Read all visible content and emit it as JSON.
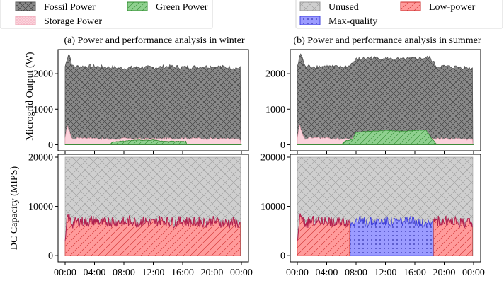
{
  "figure": {
    "legend_left": {
      "items": [
        {
          "label": "Fossil Power",
          "pattern": "fossil"
        },
        {
          "label": "Green Power",
          "pattern": "green"
        },
        {
          "label": "Storage Power",
          "pattern": "storage"
        }
      ]
    },
    "legend_right": {
      "items": [
        {
          "label": "Unused",
          "pattern": "unused"
        },
        {
          "label": "Low-power",
          "pattern": "lowpower"
        },
        {
          "label": "Max-quality",
          "pattern": "maxq"
        }
      ]
    },
    "shared_xlabel_ticks": [
      "00:00",
      "04:00",
      "08:00",
      "12:00",
      "16:00",
      "20:00",
      "00:00"
    ],
    "colors": {
      "fossil_fill": "#8a8a8a",
      "fossil_edge": "#555555",
      "green_fill": "#8fd08f",
      "green_edge": "#2e8b2e",
      "storage_fill": "#fbd3dc",
      "storage_edge": "#e8a0b0",
      "unused_fill": "#cfcfcf",
      "lowpower_fill": "#ff9b9b",
      "lowpower_edge": "#cc2b2b",
      "maxq_fill": "#9b9bff",
      "maxq_edge": "#4040dd",
      "capacity_line": "#b02050"
    }
  },
  "chart_data": [
    {
      "id": "winter-power",
      "type": "area",
      "title": "(a) Power and performance analysis in winter",
      "ylabel": "Microgrid Output (W)",
      "x_unit": "hours",
      "xlim": [
        0,
        24
      ],
      "ylim": [
        0,
        2600
      ],
      "yticks": [
        0,
        1000,
        2000
      ],
      "x_ticks": [
        "00:00",
        "04:00",
        "08:00",
        "12:00",
        "16:00",
        "20:00",
        "00:00"
      ],
      "series": [
        {
          "name": "Fossil Power",
          "x": [
            0,
            0.5,
            1,
            2,
            4,
            6,
            8,
            10,
            12,
            14,
            16,
            18,
            20,
            22,
            23.9
          ],
          "values": [
            2200,
            2600,
            2200,
            2200,
            2200,
            2180,
            2150,
            2180,
            2170,
            2200,
            2180,
            2190,
            2200,
            2180,
            2150
          ]
        },
        {
          "name": "Green Power",
          "x": [
            0,
            6,
            6.5,
            8,
            10,
            11,
            12,
            12.5,
            13,
            16.5,
            16.5,
            24
          ],
          "values": [
            0,
            0,
            80,
            100,
            130,
            120,
            130,
            110,
            100,
            90,
            0,
            0
          ]
        },
        {
          "name": "Storage Power",
          "x": [
            0,
            0.3,
            0.5,
            1,
            2,
            4,
            6,
            8,
            12,
            16,
            20,
            23.9
          ],
          "values": [
            150,
            550,
            400,
            150,
            200,
            180,
            150,
            170,
            160,
            180,
            170,
            150
          ]
        }
      ]
    },
    {
      "id": "summer-power",
      "type": "area",
      "title": "(b) Power and performance analysis in summer",
      "ylabel": "",
      "x_unit": "hours",
      "xlim": [
        0,
        24
      ],
      "ylim": [
        0,
        2600
      ],
      "yticks": [
        0,
        1000,
        2000
      ],
      "x_ticks": [
        "00:00",
        "04:00",
        "08:00",
        "12:00",
        "16:00",
        "20:00",
        "00:00"
      ],
      "series": [
        {
          "name": "Fossil Power",
          "x": [
            0,
            0.5,
            1,
            2,
            4,
            6,
            7,
            8,
            10,
            12,
            14,
            16,
            18,
            19,
            20,
            22,
            23.9
          ],
          "values": [
            2200,
            2600,
            2200,
            2200,
            2200,
            2180,
            2200,
            2400,
            2450,
            2420,
            2400,
            2420,
            2450,
            2200,
            2200,
            2180,
            2150
          ]
        },
        {
          "name": "Green Power",
          "x": [
            0,
            6,
            6.5,
            7.5,
            8,
            10,
            12,
            14,
            16,
            17.5,
            18.2,
            19,
            24
          ],
          "values": [
            0,
            0,
            100,
            150,
            350,
            380,
            400,
            380,
            400,
            420,
            200,
            0,
            0
          ]
        },
        {
          "name": "Storage Power",
          "x": [
            0,
            0.3,
            0.5,
            1,
            2,
            4,
            6,
            8,
            12,
            16,
            20,
            23.9
          ],
          "values": [
            150,
            550,
            400,
            150,
            200,
            180,
            150,
            170,
            160,
            180,
            170,
            150
          ]
        }
      ]
    },
    {
      "id": "winter-capacity",
      "type": "area",
      "title": "",
      "ylabel": "DC Capacity (MIPS)",
      "x_unit": "hours",
      "xlim": [
        0,
        24
      ],
      "ylim": [
        0,
        20000
      ],
      "yticks": [
        0,
        10000,
        20000
      ],
      "x_ticks": [
        "00:00",
        "04:00",
        "08:00",
        "12:00",
        "16:00",
        "20:00",
        "00:00"
      ],
      "series": [
        {
          "name": "Unused",
          "x": [
            0,
            24
          ],
          "values": [
            20000,
            20000
          ]
        },
        {
          "name": "Low-power",
          "x": [
            0,
            0.3,
            1,
            2,
            3,
            4,
            5,
            6,
            7,
            8,
            9,
            10,
            11,
            12,
            13,
            14,
            15,
            16,
            17,
            18,
            19,
            20,
            21,
            22,
            23,
            23.9
          ],
          "values": [
            2000,
            8000,
            6500,
            7000,
            6800,
            7200,
            6600,
            7000,
            6900,
            6700,
            7100,
            6800,
            7000,
            6600,
            7200,
            6900,
            6700,
            7100,
            6800,
            6900,
            6700,
            7000,
            6800,
            6600,
            6800,
            6200
          ]
        }
      ]
    },
    {
      "id": "summer-capacity",
      "type": "area",
      "title": "",
      "ylabel": "",
      "x_unit": "hours",
      "xlim": [
        0,
        24
      ],
      "ylim": [
        0,
        20000
      ],
      "yticks": [
        0,
        10000,
        20000
      ],
      "x_ticks": [
        "00:00",
        "04:00",
        "08:00",
        "12:00",
        "16:00",
        "20:00",
        "00:00"
      ],
      "series": [
        {
          "name": "Unused",
          "x": [
            0,
            24
          ],
          "values": [
            20000,
            20000
          ]
        },
        {
          "name": "Low-power",
          "x": [
            0,
            0.3,
            1,
            2,
            3,
            4,
            5,
            6,
            7.2,
            18.5,
            19,
            20,
            21,
            22,
            23,
            23.9
          ],
          "values": [
            2000,
            8000,
            6500,
            7000,
            6800,
            7200,
            6600,
            7000,
            6800,
            6800,
            7100,
            6900,
            7000,
            6700,
            6800,
            6200
          ]
        },
        {
          "name": "Max-quality",
          "x": [
            7.2,
            8,
            9,
            10,
            11,
            12,
            13,
            14,
            15,
            16,
            17,
            18,
            18.5
          ],
          "values": [
            6500,
            7200,
            6800,
            7000,
            6900,
            7100,
            6800,
            7000,
            6900,
            7100,
            6800,
            7000,
            6800
          ]
        }
      ]
    }
  ]
}
